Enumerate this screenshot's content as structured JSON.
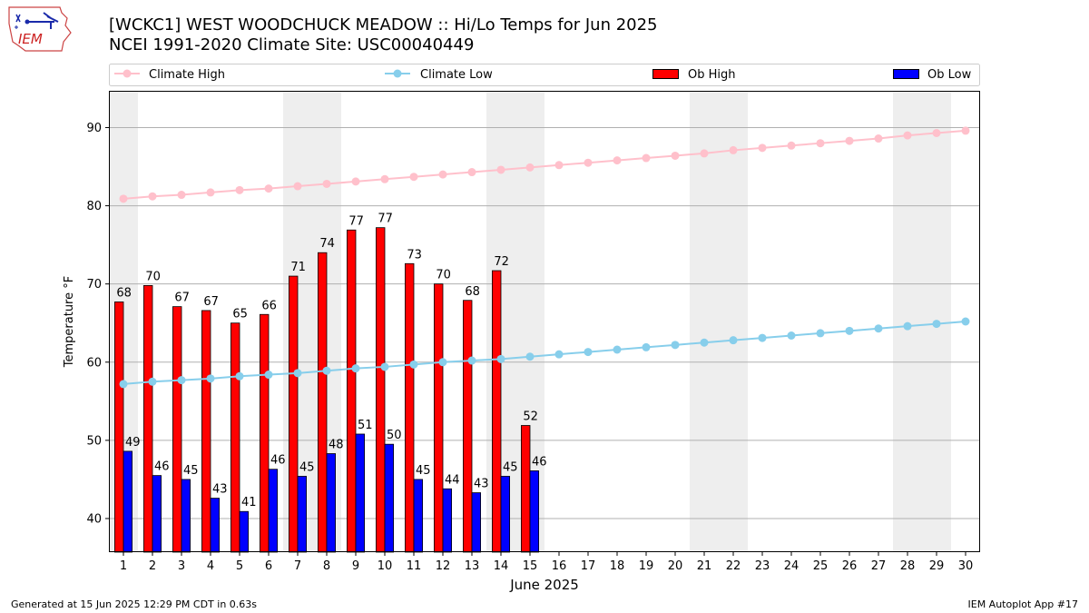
{
  "header": {
    "title_line1": "[WCKC1] WEST WOODCHUCK MEADOW :: Hi/Lo Temps for Jun 2025",
    "title_line2": "NCEI 1991-2020 Climate Site: USC00040449",
    "logo_text": "IEM"
  },
  "footer": {
    "generated": "Generated at 15 Jun 2025 12:29 PM CDT in 0.63s",
    "app": "IEM Autoplot App #17"
  },
  "colors": {
    "ob_high": "#ff0000",
    "ob_low": "#0000ff",
    "climate_high": "#ffc0cb",
    "climate_low": "#87ceeb",
    "weekend_band": "#eeeeee",
    "grid": "#b0b0b0"
  },
  "chart_data": {
    "type": "bar",
    "xlabel": "June 2025",
    "ylabel": "Temperature °F",
    "ylim": [
      35.7,
      94.7
    ],
    "yticks": [
      40,
      50,
      60,
      70,
      80,
      90
    ],
    "xlim": [
      0.5,
      30.5
    ],
    "x": [
      1,
      2,
      3,
      4,
      5,
      6,
      7,
      8,
      9,
      10,
      11,
      12,
      13,
      14,
      15,
      16,
      17,
      18,
      19,
      20,
      21,
      22,
      23,
      24,
      25,
      26,
      27,
      28,
      29,
      30
    ],
    "grid": "horizontal",
    "legend_position": "top",
    "weekend_days": [
      1,
      7,
      8,
      14,
      15,
      21,
      22,
      28,
      29
    ],
    "legend": [
      "Climate High",
      "Climate Low",
      "Ob High",
      "Ob Low"
    ],
    "series": [
      {
        "name": "Ob High",
        "kind": "bar",
        "x": [
          1,
          2,
          3,
          4,
          5,
          6,
          7,
          8,
          9,
          10,
          11,
          12,
          13,
          14,
          15
        ],
        "values": [
          67.7,
          69.8,
          67.1,
          66.6,
          65.0,
          66.1,
          71.0,
          74.0,
          76.9,
          77.2,
          72.6,
          70.0,
          67.9,
          71.7,
          51.9
        ],
        "labels": [
          "68",
          "70",
          "67",
          "67",
          "65",
          "66",
          "71",
          "74",
          "77",
          "77",
          "73",
          "70",
          "68",
          "72",
          "52"
        ]
      },
      {
        "name": "Ob Low",
        "kind": "bar",
        "x": [
          1,
          2,
          3,
          4,
          5,
          6,
          7,
          8,
          9,
          10,
          11,
          12,
          13,
          14,
          15
        ],
        "values": [
          48.6,
          45.5,
          45.0,
          42.6,
          40.9,
          46.3,
          45.4,
          48.3,
          50.8,
          49.5,
          45.0,
          43.8,
          43.3,
          45.4,
          46.1
        ],
        "labels": [
          "49",
          "46",
          "45",
          "43",
          "41",
          "46",
          "45",
          "48",
          "51",
          "50",
          "45",
          "44",
          "43",
          "45",
          "46"
        ]
      },
      {
        "name": "Climate High",
        "kind": "line",
        "values": [
          80.9,
          81.2,
          81.4,
          81.7,
          82.0,
          82.2,
          82.5,
          82.8,
          83.1,
          83.4,
          83.7,
          84.0,
          84.3,
          84.6,
          84.9,
          85.2,
          85.5,
          85.8,
          86.1,
          86.4,
          86.7,
          87.1,
          87.4,
          87.7,
          88.0,
          88.3,
          88.6,
          89.0,
          89.3,
          89.6
        ]
      },
      {
        "name": "Climate Low",
        "kind": "line",
        "values": [
          57.2,
          57.5,
          57.7,
          57.9,
          58.2,
          58.4,
          58.6,
          58.9,
          59.2,
          59.4,
          59.7,
          60.0,
          60.2,
          60.4,
          60.7,
          61.0,
          61.3,
          61.6,
          61.9,
          62.2,
          62.5,
          62.8,
          63.1,
          63.4,
          63.7,
          64.0,
          64.3,
          64.6,
          64.9,
          65.2
        ]
      }
    ]
  }
}
